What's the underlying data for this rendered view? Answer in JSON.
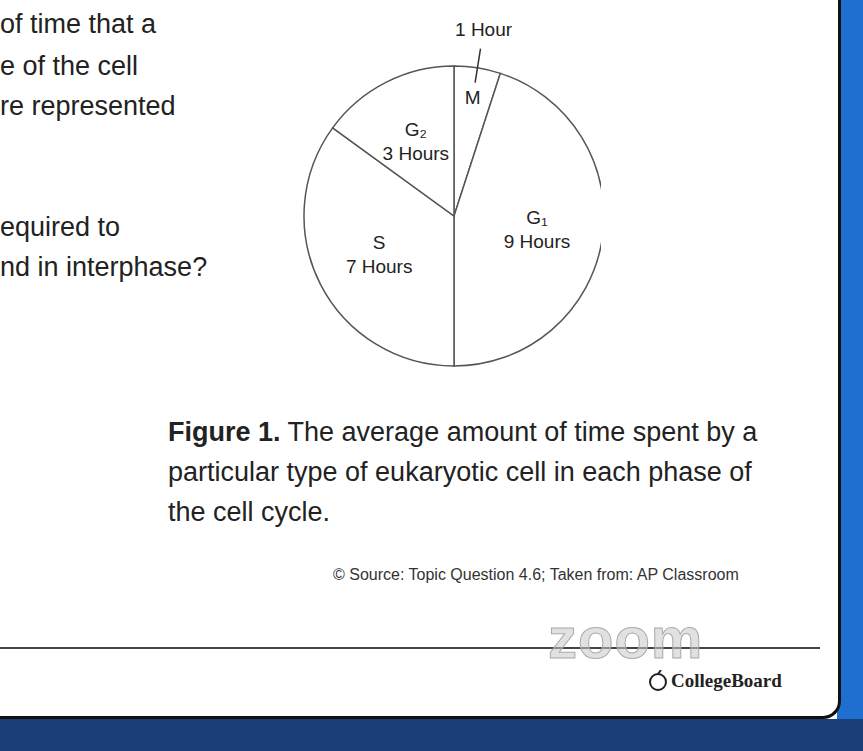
{
  "chart_data": {
    "type": "pie",
    "title": "Figure 1. The average amount of time spent by a particular type of eukaryotic cell in each phase of the cell cycle.",
    "categories": [
      "M",
      "G₁",
      "S",
      "G₂"
    ],
    "values": [
      1,
      9,
      7,
      3
    ],
    "value_labels": [
      "1 Hour",
      "9 Hours",
      "7 Hours",
      "3 Hours"
    ],
    "data_labels": true,
    "colors": [
      "#ffffff",
      "#ffffff",
      "#ffffff",
      "#ffffff"
    ],
    "annotations": [
      "of time that a",
      "e of the cell",
      "re represented",
      "equired to",
      "nd in interphase?",
      "© Source: Topic Question 4.6; Taken from: AP Classroom",
      "zoom",
      "CollegeBoard"
    ]
  }
}
